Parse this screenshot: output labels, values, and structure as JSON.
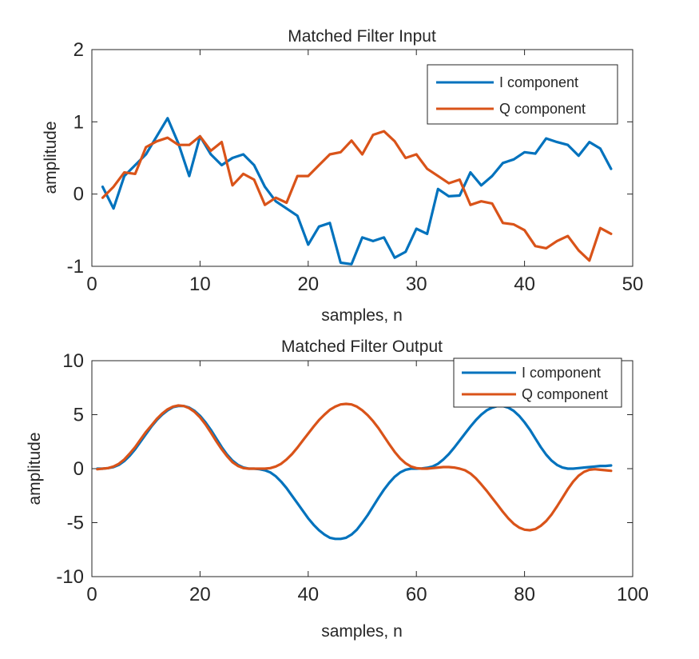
{
  "chart_data": [
    {
      "type": "line",
      "title": "Matched Filter Input",
      "xlabel": "samples, n",
      "ylabel": "amplitude",
      "xlim": [
        0,
        50
      ],
      "ylim": [
        -1,
        2
      ],
      "xticks": [
        0,
        10,
        20,
        30,
        40,
        50
      ],
      "yticks": [
        -1,
        0,
        1,
        2
      ],
      "legend_position": "top-right",
      "x": [
        1,
        2,
        3,
        4,
        5,
        6,
        7,
        8,
        9,
        10,
        11,
        12,
        13,
        14,
        15,
        16,
        17,
        18,
        19,
        20,
        21,
        22,
        23,
        24,
        25,
        26,
        27,
        28,
        29,
        30,
        31,
        32,
        33,
        34,
        35,
        36,
        37,
        38,
        39,
        40,
        41,
        42,
        43,
        44,
        45,
        46,
        47,
        48
      ],
      "series": [
        {
          "name": "I component",
          "color": "#0072BD",
          "values": [
            0.1,
            -0.2,
            0.25,
            0.4,
            0.55,
            0.8,
            1.05,
            0.7,
            0.25,
            0.8,
            0.55,
            0.4,
            0.5,
            0.55,
            0.4,
            0.1,
            -0.1,
            -0.2,
            -0.3,
            -0.7,
            -0.45,
            -0.4,
            -0.95,
            -0.97,
            -0.6,
            -0.65,
            -0.6,
            -0.88,
            -0.8,
            -0.48,
            -0.55,
            0.07,
            -0.03,
            -0.02,
            0.3,
            0.12,
            0.25,
            0.43,
            0.48,
            0.58,
            0.56,
            0.77,
            0.72,
            0.68,
            0.53,
            0.72,
            0.63,
            0.35
          ]
        },
        {
          "name": "Q component",
          "color": "#D95319",
          "values": [
            -0.05,
            0.1,
            0.3,
            0.28,
            0.65,
            0.73,
            0.78,
            0.68,
            0.68,
            0.8,
            0.6,
            0.72,
            0.12,
            0.28,
            0.2,
            -0.15,
            -0.05,
            -0.12,
            0.25,
            0.25,
            0.4,
            0.55,
            0.58,
            0.74,
            0.55,
            0.82,
            0.87,
            0.73,
            0.5,
            0.55,
            0.35,
            0.25,
            0.15,
            0.2,
            -0.15,
            -0.1,
            -0.13,
            -0.4,
            -0.42,
            -0.5,
            -0.72,
            -0.75,
            -0.65,
            -0.58,
            -0.78,
            -0.92,
            -0.47,
            -0.55
          ]
        }
      ]
    },
    {
      "type": "line",
      "title": "Matched Filter Output",
      "xlabel": "samples, n",
      "ylabel": "amplitude",
      "xlim": [
        0,
        100
      ],
      "ylim": [
        -10,
        10
      ],
      "xticks": [
        0,
        20,
        40,
        60,
        80,
        100
      ],
      "yticks": [
        -10,
        -5,
        0,
        5,
        10
      ],
      "legend_position": "top-right",
      "x": [
        1,
        2,
        3,
        4,
        5,
        6,
        7,
        8,
        9,
        10,
        11,
        12,
        13,
        14,
        15,
        16,
        17,
        18,
        19,
        20,
        21,
        22,
        23,
        24,
        25,
        26,
        27,
        28,
        29,
        30,
        31,
        32,
        33,
        34,
        35,
        36,
        37,
        38,
        39,
        40,
        41,
        42,
        43,
        44,
        45,
        46,
        47,
        48,
        49,
        50,
        51,
        52,
        53,
        54,
        55,
        56,
        57,
        58,
        59,
        60,
        61,
        62,
        63,
        64,
        65,
        66,
        67,
        68,
        69,
        70,
        71,
        72,
        73,
        74,
        75,
        76,
        77,
        78,
        79,
        80,
        81,
        82,
        83,
        84,
        85,
        86,
        87,
        88,
        89,
        90,
        91,
        92,
        93,
        94,
        95,
        96
      ],
      "series": [
        {
          "name": "I component",
          "color": "#0072BD",
          "values": [
            0,
            0,
            0.05,
            0.15,
            0.35,
            0.7,
            1.2,
            1.8,
            2.5,
            3.2,
            3.9,
            4.5,
            5.0,
            5.4,
            5.7,
            5.8,
            5.8,
            5.65,
            5.35,
            4.9,
            4.3,
            3.6,
            2.8,
            2.0,
            1.3,
            0.75,
            0.35,
            0.1,
            0,
            0,
            -0.05,
            -0.15,
            -0.35,
            -0.7,
            -1.2,
            -1.8,
            -2.5,
            -3.2,
            -3.9,
            -4.6,
            -5.2,
            -5.7,
            -6.1,
            -6.4,
            -6.5,
            -6.5,
            -6.4,
            -6.1,
            -5.65,
            -5.0,
            -4.3,
            -3.5,
            -2.7,
            -1.95,
            -1.3,
            -0.75,
            -0.35,
            -0.1,
            0,
            0,
            0.02,
            0.08,
            0.2,
            0.45,
            0.85,
            1.35,
            1.95,
            2.6,
            3.25,
            3.9,
            4.5,
            5.0,
            5.4,
            5.65,
            5.8,
            5.8,
            5.65,
            5.35,
            4.9,
            4.3,
            3.6,
            2.8,
            2.0,
            1.3,
            0.75,
            0.35,
            0.1,
            0,
            0,
            0.05,
            0.1,
            0.15,
            0.2,
            0.25,
            0.25,
            0.3
          ]
        },
        {
          "name": "Q component",
          "color": "#D95319",
          "values": [
            -0.05,
            0,
            0.05,
            0.2,
            0.45,
            0.85,
            1.4,
            2.0,
            2.7,
            3.4,
            4.0,
            4.6,
            5.1,
            5.5,
            5.75,
            5.85,
            5.8,
            5.6,
            5.25,
            4.75,
            4.1,
            3.35,
            2.55,
            1.8,
            1.15,
            0.6,
            0.25,
            0.05,
            0,
            0,
            0,
            0,
            0.05,
            0.2,
            0.45,
            0.85,
            1.35,
            1.95,
            2.6,
            3.25,
            3.9,
            4.5,
            5.0,
            5.45,
            5.75,
            5.95,
            6.0,
            5.95,
            5.75,
            5.4,
            4.95,
            4.4,
            3.75,
            3.0,
            2.25,
            1.55,
            0.95,
            0.5,
            0.2,
            0.05,
            0,
            0,
            0.05,
            0.1,
            0.15,
            0.15,
            0.1,
            0,
            -0.15,
            -0.45,
            -0.9,
            -1.45,
            -2.05,
            -2.7,
            -3.35,
            -4.0,
            -4.6,
            -5.1,
            -5.45,
            -5.65,
            -5.7,
            -5.6,
            -5.3,
            -4.85,
            -4.25,
            -3.5,
            -2.7,
            -1.9,
            -1.2,
            -0.65,
            -0.3,
            -0.1,
            -0.05,
            -0.1,
            -0.15,
            -0.2
          ]
        }
      ]
    }
  ]
}
